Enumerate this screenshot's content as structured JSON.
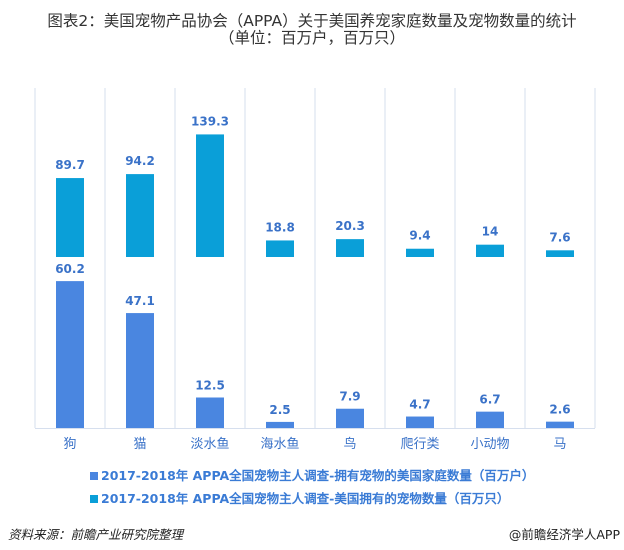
{
  "title_line1": "图表2：美国宠物产品协会（APPA）关于美国养宠家庭数量及宠物数量的统计",
  "title_line2": "（单位：百万户，百万只）",
  "chart_data": {
    "type": "bar",
    "categories": [
      "狗",
      "猫",
      "淡水鱼",
      "海水鱼",
      "鸟",
      "爬行类",
      "小动物",
      "马"
    ],
    "series": [
      {
        "name": "2017-2018年 APPA全国宠物主人调查-拥有宠物的美国家庭数量（百万户）",
        "values": [
          60.2,
          47.1,
          12.5,
          2.5,
          7.9,
          4.7,
          6.7,
          2.6
        ],
        "color": "#4a86e0"
      },
      {
        "name": "2017-2018年 APPA全国宠物主人调查-美国拥有的宠物数量（百万只）",
        "values": [
          89.7,
          94.2,
          139.3,
          18.8,
          20.3,
          9.4,
          14,
          7.6
        ],
        "color": "#0a9fd8"
      }
    ],
    "label_color": "#3a72c8",
    "grid": "vertical",
    "legend": "bottom"
  },
  "source": "资料来源：前瞻产业研究院整理",
  "brand": "@前瞻经济学人APP"
}
